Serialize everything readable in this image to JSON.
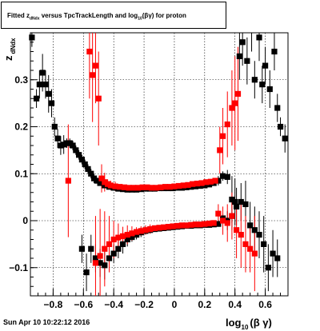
{
  "chart_data": {
    "type": "scatter",
    "title_parts": {
      "part1": "Fitted  z",
      "sub1": "dNdx",
      "part2": " versus TpcTrackLength and log",
      "sub2": "10",
      "part3": "(βγ) for proton"
    },
    "xlabel": "log",
    "xlabel_sub": "10",
    "xlabel_tail": "(β γ)",
    "ylabel": "z",
    "ylabel_sub": "dNdx",
    "xlim": [
      -0.95,
      0.75
    ],
    "ylim": [
      -0.16,
      0.4
    ],
    "grid": true,
    "x_ticks": [
      -0.8,
      -0.6,
      -0.4,
      -0.2,
      0,
      0.2,
      0.4,
      0.6
    ],
    "x_tick_labels": [
      "−0.8",
      "−0.6",
      "−0.4",
      "−0.2",
      "0",
      "0.2",
      "0.4",
      "0.6"
    ],
    "y_ticks": [
      -0.1,
      0,
      0.1,
      0.2,
      0.3
    ],
    "y_tick_labels": [
      "−0.1",
      "0",
      "0.1",
      "0.2",
      "0.3"
    ],
    "colors": {
      "black": "#000000",
      "red": "#ff0000"
    },
    "series": [
      {
        "color": "black",
        "marker": "square",
        "points": [
          [
            -0.94,
            0.39,
            0.02
          ],
          [
            -0.91,
            0.26,
            0.02
          ],
          [
            -0.89,
            0.29,
            0.03
          ],
          [
            -0.87,
            0.315,
            0.04
          ],
          [
            -0.85,
            0.29,
            0.03
          ],
          [
            -0.83,
            0.27,
            0.04
          ],
          [
            -0.81,
            0.25,
            0.03
          ],
          [
            -0.79,
            0.2,
            0.02
          ],
          [
            -0.77,
            0.175,
            0.02
          ],
          [
            -0.75,
            0.16,
            0.02
          ],
          [
            -0.73,
            0.162,
            0.02
          ],
          [
            -0.71,
            0.165,
            0.01
          ],
          [
            -0.69,
            0.165,
            0.01
          ],
          [
            -0.67,
            0.16,
            0.01
          ],
          [
            -0.65,
            0.15,
            0.01
          ],
          [
            -0.63,
            0.14,
            0.01
          ],
          [
            -0.61,
            0.13,
            0.01
          ],
          [
            -0.59,
            0.12,
            0.01
          ],
          [
            -0.57,
            0.11,
            0.01
          ],
          [
            -0.55,
            0.1,
            0.01
          ],
          [
            -0.53,
            0.09,
            0.01
          ],
          [
            -0.51,
            0.085,
            0.005
          ],
          [
            -0.49,
            0.08,
            0.005
          ],
          [
            -0.46,
            0.075,
            0.005
          ],
          [
            -0.43,
            0.072,
            0.005
          ],
          [
            -0.4,
            0.07,
            0.005
          ],
          [
            -0.37,
            0.068,
            0.005
          ],
          [
            -0.34,
            0.067,
            0.005
          ],
          [
            -0.31,
            0.066,
            0.005
          ],
          [
            -0.28,
            0.066,
            0.005
          ],
          [
            -0.25,
            0.066,
            0.005
          ],
          [
            -0.22,
            0.067,
            0.005
          ],
          [
            -0.19,
            0.068,
            0.005
          ],
          [
            -0.16,
            0.068,
            0.005
          ],
          [
            -0.13,
            0.068,
            0.005
          ],
          [
            -0.1,
            0.069,
            0.005
          ],
          [
            -0.07,
            0.069,
            0.005
          ],
          [
            -0.04,
            0.069,
            0.005
          ],
          [
            -0.01,
            0.069,
            0.005
          ],
          [
            0.02,
            0.07,
            0.005
          ],
          [
            0.05,
            0.07,
            0.005
          ],
          [
            0.08,
            0.071,
            0.005
          ],
          [
            0.11,
            0.072,
            0.005
          ],
          [
            0.14,
            0.073,
            0.005
          ],
          [
            0.17,
            0.074,
            0.005
          ],
          [
            0.2,
            0.075,
            0.005
          ],
          [
            0.23,
            0.077,
            0.005
          ],
          [
            0.26,
            0.08,
            0.005
          ],
          [
            0.29,
            0.085,
            0.01
          ],
          [
            0.32,
            0.095,
            0.01
          ],
          [
            0.35,
            0.093,
            0.015
          ],
          [
            0.38,
            0.045,
            0.05
          ],
          [
            0.4,
            0.04,
            0.05
          ],
          [
            0.43,
            0.35,
            0.05
          ],
          [
            0.45,
            0.38,
            0.05
          ],
          [
            0.48,
            0.34,
            0.05
          ],
          [
            0.51,
            0.42,
            0.06
          ],
          [
            0.53,
            0.3,
            0.04
          ],
          [
            0.56,
            0.39,
            0.05
          ],
          [
            0.58,
            0.29,
            0.04
          ],
          [
            0.6,
            0.33,
            0.04
          ],
          [
            0.63,
            0.28,
            0.04
          ],
          [
            0.66,
            0.36,
            0.04
          ],
          [
            0.68,
            0.24,
            0.03
          ],
          [
            0.7,
            0.2,
            0.02
          ],
          [
            -0.61,
            -0.06,
            0.03
          ],
          [
            -0.58,
            -0.11,
            0.04
          ],
          [
            -0.55,
            -0.06,
            0.03
          ],
          [
            -0.52,
            -0.08,
            0.03
          ],
          [
            -0.49,
            -0.09,
            0.03
          ],
          [
            -0.46,
            -0.095,
            0.03
          ],
          [
            -0.43,
            -0.08,
            0.02
          ],
          [
            -0.4,
            -0.07,
            0.02
          ],
          [
            -0.37,
            -0.06,
            0.02
          ],
          [
            -0.34,
            -0.05,
            0.02
          ],
          [
            -0.31,
            -0.04,
            0.015
          ],
          [
            -0.28,
            -0.035,
            0.01
          ],
          [
            -0.25,
            -0.03,
            0.01
          ],
          [
            -0.22,
            -0.025,
            0.01
          ],
          [
            -0.19,
            -0.022,
            0.005
          ],
          [
            -0.16,
            -0.02,
            0.005
          ],
          [
            -0.13,
            -0.018,
            0.005
          ],
          [
            -0.1,
            -0.017,
            0.005
          ],
          [
            -0.07,
            -0.016,
            0.005
          ],
          [
            -0.04,
            -0.015,
            0.005
          ],
          [
            -0.01,
            -0.014,
            0.005
          ],
          [
            0.02,
            -0.013,
            0.005
          ],
          [
            0.05,
            -0.012,
            0.005
          ],
          [
            0.08,
            -0.011,
            0.005
          ],
          [
            0.11,
            -0.011,
            0.005
          ],
          [
            0.14,
            -0.01,
            0.005
          ],
          [
            0.17,
            -0.01,
            0.005
          ],
          [
            0.2,
            -0.009,
            0.005
          ],
          [
            0.23,
            -0.009,
            0.005
          ],
          [
            0.26,
            -0.008,
            0.005
          ],
          [
            0.29,
            -0.007,
            0.005
          ],
          [
            0.32,
            0.005,
            0.01
          ],
          [
            0.35,
            0.0,
            0.02
          ],
          [
            0.38,
            0.01,
            0.03
          ],
          [
            0.41,
            0.03,
            0.04
          ],
          [
            0.44,
            0.04,
            0.04
          ],
          [
            0.47,
            0.035,
            0.05
          ],
          [
            0.5,
            -0.01,
            0.05
          ],
          [
            0.53,
            -0.02,
            0.05
          ],
          [
            0.56,
            -0.03,
            0.05
          ],
          [
            0.59,
            -0.05,
            0.06
          ],
          [
            0.62,
            -0.1,
            0.05
          ],
          [
            0.65,
            -0.07,
            0.05
          ],
          [
            0.68,
            -0.08,
            0.04
          ],
          [
            0.73,
            0.175,
            0.03
          ]
        ]
      },
      {
        "color": "red",
        "marker": "square",
        "points": [
          [
            -0.56,
            0.36,
            0.1
          ],
          [
            -0.54,
            0.31,
            0.1
          ],
          [
            -0.52,
            0.33,
            0.08
          ],
          [
            -0.5,
            0.26,
            0.1
          ],
          [
            -0.48,
            0.09,
            0.03
          ],
          [
            -0.46,
            0.082,
            0.02
          ],
          [
            -0.44,
            0.078,
            0.01
          ],
          [
            -0.42,
            0.075,
            0.01
          ],
          [
            -0.39,
            0.073,
            0.01
          ],
          [
            -0.36,
            0.072,
            0.005
          ],
          [
            -0.33,
            0.071,
            0.005
          ],
          [
            -0.3,
            0.07,
            0.005
          ],
          [
            -0.27,
            0.07,
            0.005
          ],
          [
            -0.24,
            0.07,
            0.005
          ],
          [
            -0.21,
            0.071,
            0.005
          ],
          [
            -0.18,
            0.071,
            0.005
          ],
          [
            -0.15,
            0.07,
            0.005
          ],
          [
            -0.12,
            0.07,
            0.005
          ],
          [
            -0.09,
            0.071,
            0.005
          ],
          [
            -0.06,
            0.072,
            0.005
          ],
          [
            -0.03,
            0.072,
            0.005
          ],
          [
            0.0,
            0.073,
            0.005
          ],
          [
            0.03,
            0.074,
            0.005
          ],
          [
            0.06,
            0.075,
            0.005
          ],
          [
            0.09,
            0.076,
            0.005
          ],
          [
            0.12,
            0.078,
            0.005
          ],
          [
            0.15,
            0.079,
            0.005
          ],
          [
            0.18,
            0.08,
            0.005
          ],
          [
            0.21,
            0.082,
            0.005
          ],
          [
            0.24,
            0.083,
            0.005
          ],
          [
            0.27,
            0.085,
            0.005
          ],
          [
            0.3,
            0.15,
            0.05
          ],
          [
            0.32,
            0.18,
            0.06
          ],
          [
            0.35,
            0.205,
            0.07
          ],
          [
            0.38,
            0.24,
            0.08
          ],
          [
            0.4,
            0.25,
            0.1
          ],
          [
            0.42,
            0.27,
            0.1
          ],
          [
            -0.7,
            0.085,
            0.12
          ],
          [
            -0.52,
            -0.09,
            0.1
          ],
          [
            -0.49,
            -0.075,
            0.1
          ],
          [
            -0.46,
            -0.06,
            0.08
          ],
          [
            -0.43,
            -0.05,
            0.06
          ],
          [
            -0.4,
            -0.04,
            0.04
          ],
          [
            -0.37,
            -0.036,
            0.03
          ],
          [
            -0.34,
            -0.033,
            0.02
          ],
          [
            -0.31,
            -0.03,
            0.02
          ],
          [
            -0.28,
            -0.027,
            0.015
          ],
          [
            -0.25,
            -0.024,
            0.01
          ],
          [
            -0.22,
            -0.022,
            0.01
          ],
          [
            -0.19,
            -0.02,
            0.01
          ],
          [
            -0.16,
            -0.018,
            0.01
          ],
          [
            -0.13,
            -0.016,
            0.005
          ],
          [
            -0.1,
            -0.015,
            0.005
          ],
          [
            -0.07,
            -0.014,
            0.005
          ],
          [
            -0.04,
            -0.013,
            0.005
          ],
          [
            -0.01,
            -0.012,
            0.005
          ],
          [
            0.02,
            -0.011,
            0.005
          ],
          [
            0.05,
            -0.01,
            0.005
          ],
          [
            0.08,
            -0.01,
            0.005
          ],
          [
            0.11,
            -0.009,
            0.005
          ],
          [
            0.14,
            -0.008,
            0.005
          ],
          [
            0.17,
            -0.008,
            0.005
          ],
          [
            0.2,
            -0.007,
            0.005
          ],
          [
            0.23,
            -0.006,
            0.005
          ],
          [
            0.26,
            -0.005,
            0.005
          ],
          [
            0.29,
            0.015,
            0.02
          ],
          [
            0.32,
            0.0,
            0.03
          ],
          [
            0.35,
            -0.005,
            0.04
          ],
          [
            0.38,
            0.01,
            0.05
          ],
          [
            0.41,
            -0.02,
            0.06
          ],
          [
            0.44,
            -0.03,
            0.07
          ],
          [
            0.47,
            -0.05,
            0.06
          ],
          [
            0.5,
            -0.06,
            0.05
          ],
          [
            0.53,
            -0.07,
            0.08
          ]
        ]
      }
    ]
  },
  "timestamp": "Sun Apr 10 10:22:12 2016"
}
